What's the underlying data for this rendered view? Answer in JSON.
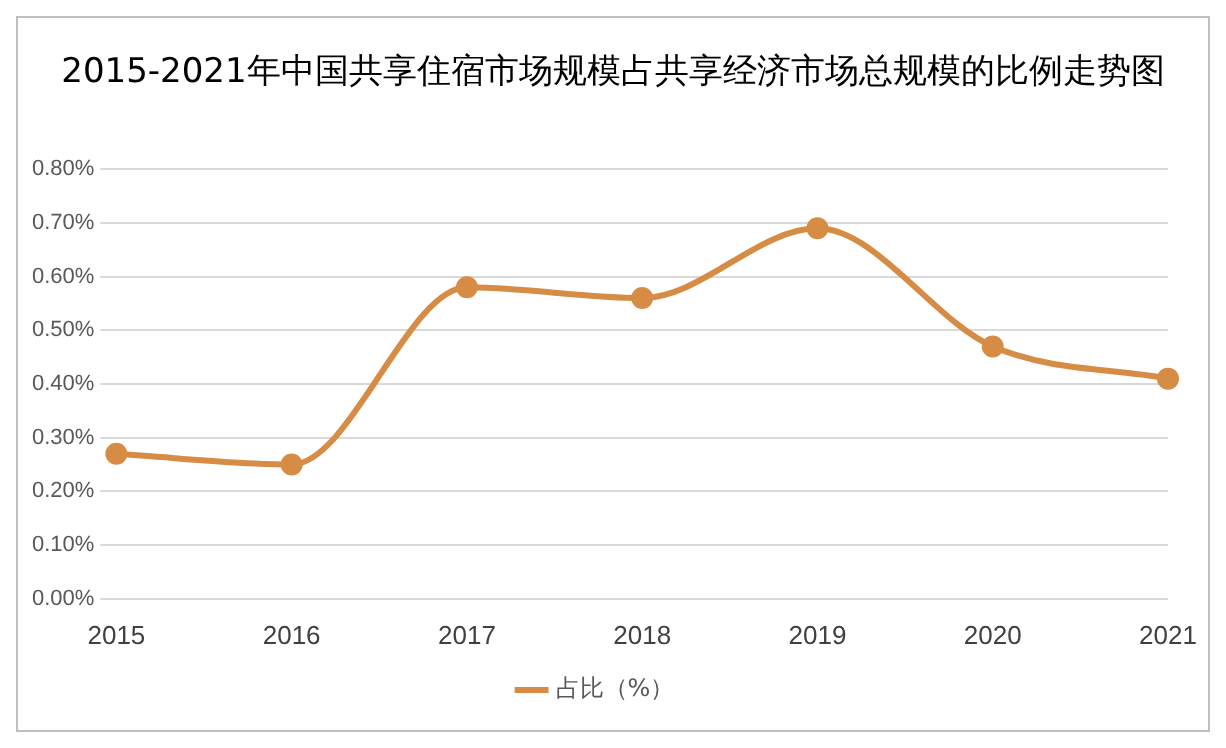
{
  "chart_data": {
    "type": "line",
    "title": "2015-2021年中国共享住宿市场规模占共享经济市场总规模的比例走势图",
    "categories": [
      "2015",
      "2016",
      "2017",
      "2018",
      "2019",
      "2020",
      "2021"
    ],
    "series": [
      {
        "name": "占比（%）",
        "color": "#d68c45",
        "values": [
          0.27,
          0.25,
          0.58,
          0.56,
          0.69,
          0.47,
          0.41
        ]
      }
    ],
    "ylim": [
      0,
      0.8
    ],
    "yticks": [
      {
        "value": 0,
        "label": "0.00%"
      },
      {
        "value": 0.1,
        "label": "0.10%"
      },
      {
        "value": 0.2,
        "label": "0.20%"
      },
      {
        "value": 0.3,
        "label": "0.30%"
      },
      {
        "value": 0.4,
        "label": "0.40%"
      },
      {
        "value": 0.5,
        "label": "0.50%"
      },
      {
        "value": 0.6,
        "label": "0.60%"
      },
      {
        "value": 0.7,
        "label": "0.70%"
      },
      {
        "value": 0.8,
        "label": "0.80%"
      }
    ],
    "grid": "y",
    "legend": "bottom",
    "marker": "circle",
    "line_style": "solid"
  }
}
